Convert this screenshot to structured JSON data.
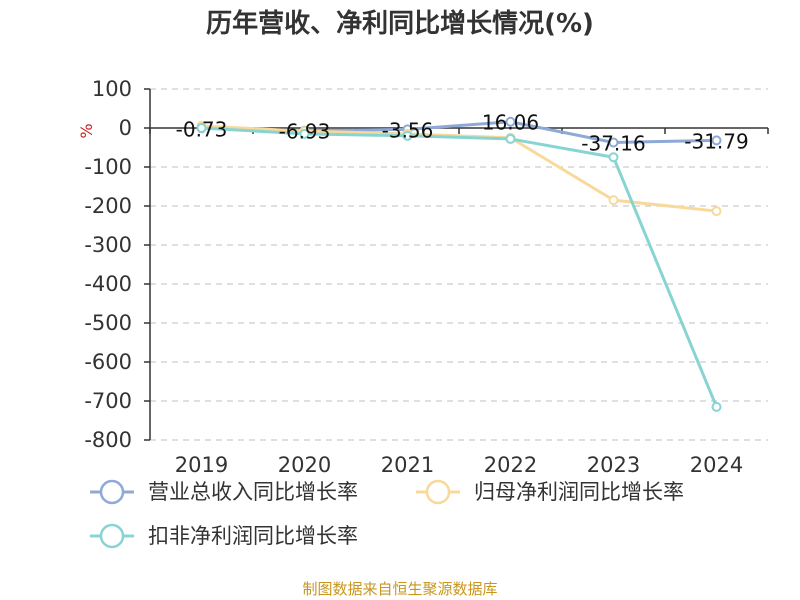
{
  "chart_data": {
    "type": "line",
    "title": "历年营收、净利同比增长情况(%)",
    "ylabel": "%",
    "categories": [
      "2019",
      "2020",
      "2021",
      "2022",
      "2023",
      "2024"
    ],
    "ylim": [
      -800,
      100
    ],
    "yticks": [
      100,
      0,
      -100,
      -200,
      -300,
      -400,
      -500,
      -600,
      -700,
      -800
    ],
    "grid": true,
    "legend_position": "bottom",
    "series": [
      {
        "name": "营业总收入同比增长率",
        "color": "#8fa9d6",
        "values": [
          -0.73,
          -6.93,
          -3.56,
          16.06,
          -37.16,
          -31.79
        ],
        "labels": [
          "-0.73",
          "-6.93",
          "-3.56",
          "16.06",
          "-37.16",
          "-31.79"
        ]
      },
      {
        "name": "归母净利润同比增长率",
        "color": "#f8d99a",
        "values": [
          5,
          -8,
          -15,
          -25,
          -185,
          -213
        ]
      },
      {
        "name": "扣非净利润同比增长率",
        "color": "#88d4d3",
        "values": [
          0,
          -15,
          -20,
          -28,
          -75,
          -715
        ]
      }
    ]
  },
  "source": {
    "text": "制图数据来自恒生聚源数据库",
    "color": "#c8961e"
  },
  "colors": {
    "unit": "#cc2222",
    "axis": "#333333",
    "grid": "#cccccc"
  }
}
